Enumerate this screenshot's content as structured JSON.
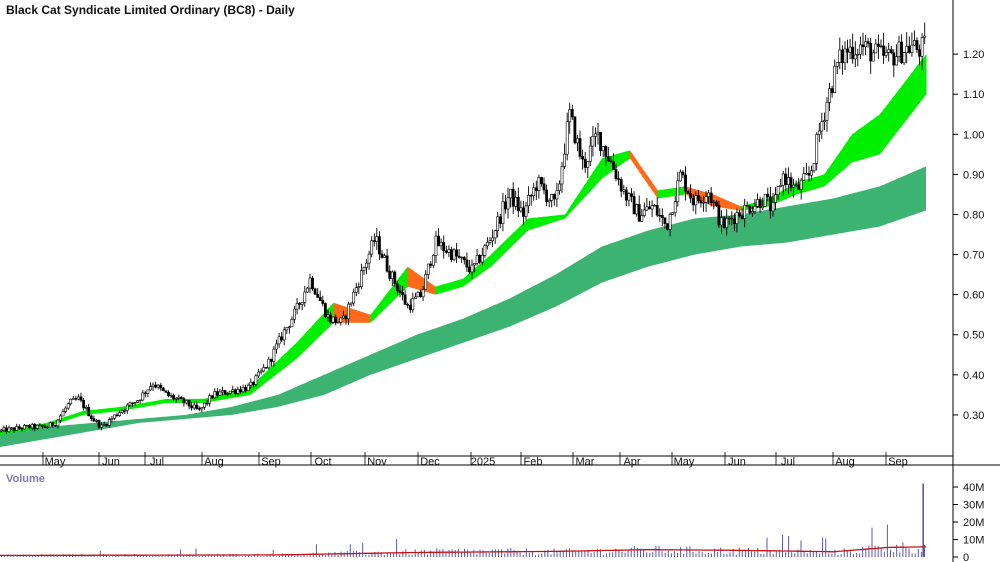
{
  "chart_data": [
    {
      "type": "candlestick",
      "title": "Black Cat Syndicate Limited Ordinary (BC8) - Daily",
      "price_axis": {
        "ticks": [
          0.3,
          0.4,
          0.5,
          0.6,
          0.7,
          0.8,
          0.9,
          1.0,
          1.1,
          1.2
        ],
        "tick_labels": [
          "0.30",
          "0.40",
          "0.50",
          "0.60",
          "0.70",
          "0.80",
          "0.90",
          "1.00",
          "1.10",
          "1.20"
        ],
        "ylim": [
          0.21,
          1.31
        ]
      },
      "time_axis": {
        "labels": [
          "May",
          "Jun",
          "Jul",
          "Aug",
          "Sep",
          "Oct",
          "Nov",
          "Dec",
          "2025",
          "Feb",
          "Mar",
          "Apr",
          "May",
          "Jun",
          "Jul",
          "Aug",
          "Sep"
        ],
        "label_positions_index": [
          0,
          1,
          2,
          3,
          4,
          5,
          6,
          7,
          8,
          9,
          10,
          11,
          12,
          13,
          14,
          15,
          16
        ],
        "range": [
          "2024-04-24",
          "2025-09-26"
        ]
      },
      "price_path": {
        "t": [
          0,
          0.03,
          0.05,
          0.06,
          0.075,
          0.085,
          0.1,
          0.11,
          0.13,
          0.15,
          0.165,
          0.18,
          0.2,
          0.215,
          0.23,
          0.25,
          0.27,
          0.29,
          0.305,
          0.32,
          0.335,
          0.355,
          0.37,
          0.385,
          0.405,
          0.42,
          0.44,
          0.455,
          0.47,
          0.49,
          0.51,
          0.53,
          0.55,
          0.565,
          0.58,
          0.6,
          0.615,
          0.63,
          0.645,
          0.66,
          0.675,
          0.69,
          0.705,
          0.72,
          0.735,
          0.75,
          0.765,
          0.78,
          0.795,
          0.81,
          0.825,
          0.835,
          0.845,
          0.86,
          0.875,
          0.885,
          0.895,
          0.905,
          0.915,
          0.93,
          0.945,
          0.96,
          0.975,
          0.985,
          0.992,
          1
        ],
        "close": [
          0.26,
          0.27,
          0.27,
          0.28,
          0.33,
          0.34,
          0.29,
          0.27,
          0.31,
          0.34,
          0.38,
          0.35,
          0.33,
          0.31,
          0.35,
          0.36,
          0.37,
          0.43,
          0.5,
          0.56,
          0.64,
          0.54,
          0.53,
          0.62,
          0.74,
          0.66,
          0.57,
          0.6,
          0.73,
          0.7,
          0.66,
          0.74,
          0.85,
          0.8,
          0.88,
          0.82,
          1.05,
          0.92,
          1.0,
          0.93,
          0.85,
          0.8,
          0.82,
          0.77,
          0.9,
          0.83,
          0.86,
          0.77,
          0.8,
          0.82,
          0.84,
          0.81,
          0.9,
          0.86,
          0.9,
          1.01,
          1.1,
          1.18,
          1.21,
          1.22,
          1.2,
          1.19,
          1.21,
          1.22,
          1.21,
          1.22
        ]
      },
      "bands": [
        {
          "name": "short-term moving averages",
          "t": [
            0,
            0.05,
            0.09,
            0.13,
            0.18,
            0.22,
            0.27,
            0.32,
            0.36,
            0.4,
            0.44,
            0.47,
            0.5,
            0.53,
            0.57,
            0.61,
            0.65,
            0.68,
            0.71,
            0.74,
            0.77,
            0.8,
            0.83,
            0.86,
            0.89,
            0.92,
            0.95,
            1
          ],
          "upper": [
            0.26,
            0.28,
            0.31,
            0.32,
            0.34,
            0.34,
            0.37,
            0.48,
            0.58,
            0.55,
            0.67,
            0.62,
            0.64,
            0.7,
            0.79,
            0.8,
            0.94,
            0.96,
            0.86,
            0.87,
            0.85,
            0.82,
            0.84,
            0.88,
            0.9,
            1.0,
            1.05,
            1.2
          ],
          "lower": [
            0.25,
            0.27,
            0.3,
            0.31,
            0.33,
            0.33,
            0.35,
            0.44,
            0.53,
            0.53,
            0.62,
            0.6,
            0.62,
            0.67,
            0.76,
            0.79,
            0.89,
            0.94,
            0.84,
            0.85,
            0.82,
            0.81,
            0.82,
            0.85,
            0.87,
            0.93,
            0.95,
            1.1
          ],
          "rising_color": "#00ee00",
          "falling_color": "#ff6a1a"
        },
        {
          "name": "long-term moving averages",
          "t": [
            0,
            0.05,
            0.1,
            0.15,
            0.2,
            0.25,
            0.3,
            0.35,
            0.4,
            0.45,
            0.5,
            0.55,
            0.6,
            0.65,
            0.7,
            0.75,
            0.8,
            0.85,
            0.9,
            0.95,
            1
          ],
          "upper": [
            0.26,
            0.27,
            0.28,
            0.29,
            0.3,
            0.32,
            0.35,
            0.4,
            0.45,
            0.5,
            0.54,
            0.59,
            0.65,
            0.72,
            0.76,
            0.79,
            0.8,
            0.82,
            0.84,
            0.87,
            0.92
          ],
          "lower": [
            0.22,
            0.24,
            0.26,
            0.28,
            0.29,
            0.3,
            0.32,
            0.35,
            0.4,
            0.44,
            0.48,
            0.52,
            0.57,
            0.63,
            0.67,
            0.7,
            0.72,
            0.73,
            0.75,
            0.77,
            0.81
          ],
          "color": "#3cb371"
        }
      ]
    },
    {
      "type": "bar",
      "title": "Volume",
      "volume_axis": {
        "ticks": [
          0,
          10,
          20,
          30,
          40
        ],
        "tick_labels": [
          "0",
          "10M",
          "20M",
          "30M",
          "40M"
        ],
        "ylim": [
          0,
          44
        ]
      },
      "bar_color": "#5a5ab0",
      "average_line_color": "#cc1111",
      "spike": {
        "t": 0.997,
        "value": 42.0
      },
      "profile": {
        "t": [
          0,
          0.3,
          0.4,
          0.5,
          0.6,
          0.7,
          0.8,
          0.9,
          0.96,
          1
        ],
        "value": [
          1.0,
          1.4,
          2.6,
          3.6,
          3.2,
          4.4,
          3.8,
          2.8,
          6.0,
          6.0
        ]
      },
      "average": {
        "t": [
          0,
          0.3,
          0.45,
          0.6,
          0.7,
          0.8,
          0.9,
          0.96,
          1
        ],
        "value": [
          0.9,
          1.2,
          2.6,
          3.2,
          4.2,
          3.8,
          3.0,
          5.5,
          5.8
        ]
      }
    }
  ]
}
